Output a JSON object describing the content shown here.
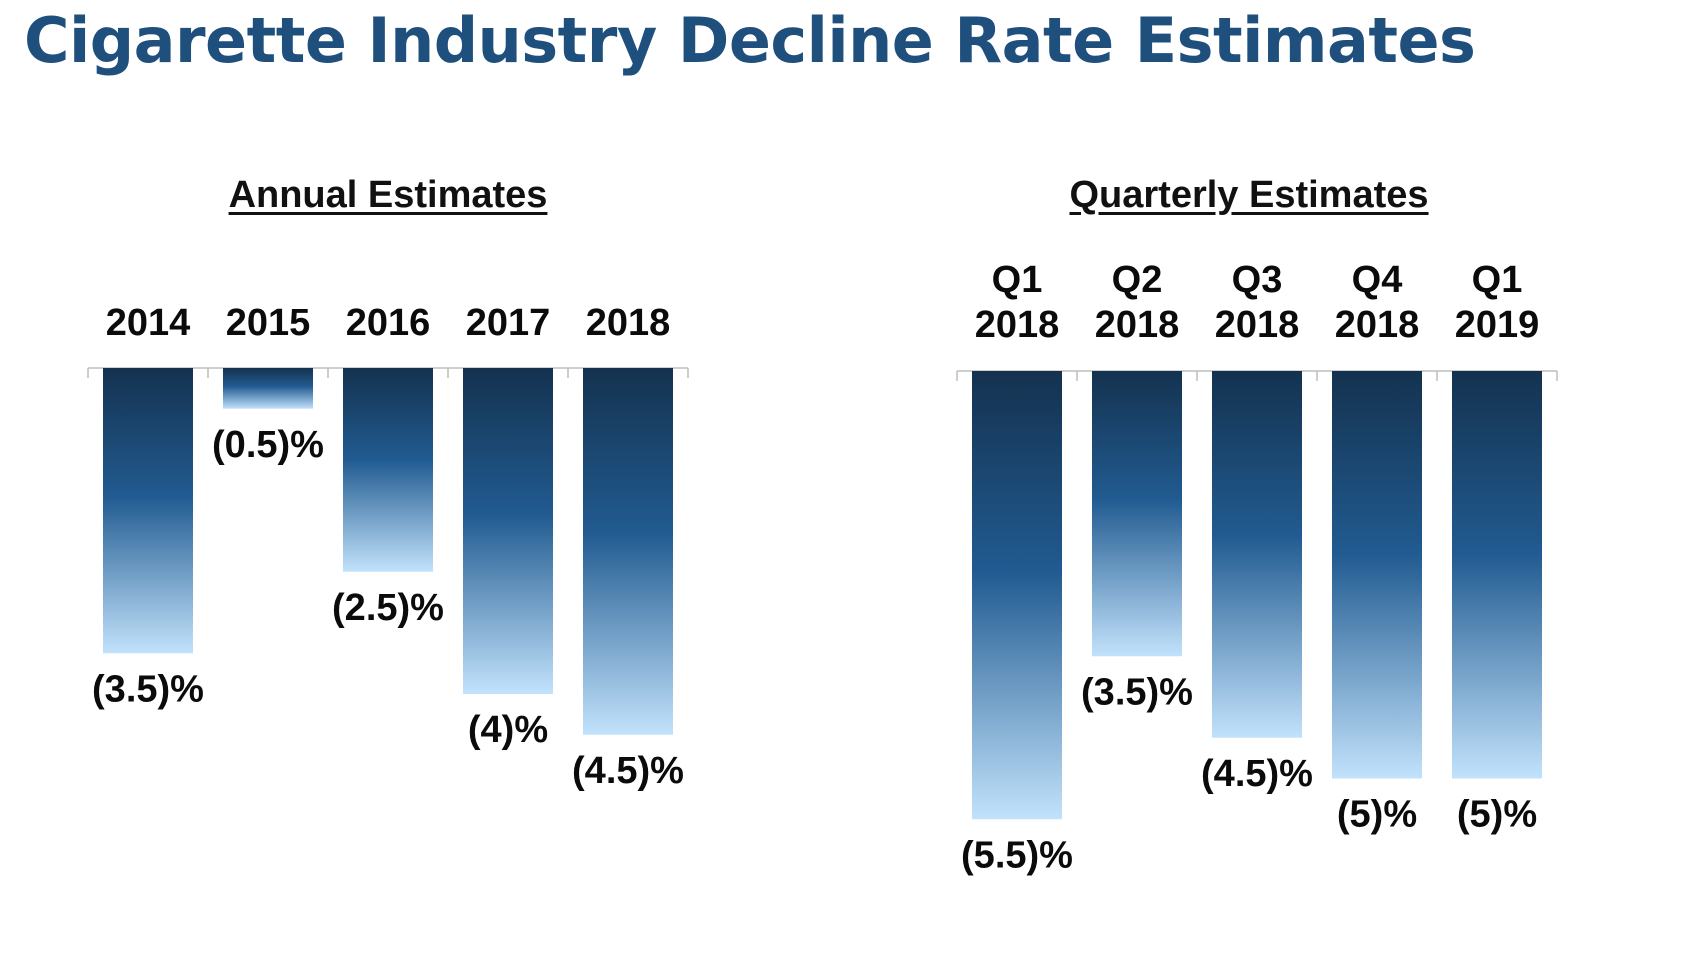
{
  "title": "Cigarette Industry Decline Rate Estimates",
  "colors": {
    "title": "#1f4f7d",
    "bar_top": "#14324f",
    "bar_mid": "#215b91",
    "bar_bottom": "#c2e2fb",
    "axis": "#bdbdbd"
  },
  "chart_data": [
    {
      "type": "bar",
      "title": "Annual Estimates",
      "categories": [
        "2014",
        "2015",
        "2016",
        "2017",
        "2018"
      ],
      "values": [
        -3.5,
        -0.5,
        -2.5,
        -4,
        -4.5
      ],
      "value_labels": [
        "(3.5)%",
        "(0.5)%",
        "(2.5)%",
        "(4)%",
        "(4.5)%"
      ],
      "ylim": [
        -5.5,
        0
      ],
      "grid": false,
      "legend": "none"
    },
    {
      "type": "bar",
      "title": "Quarterly Estimates",
      "categories": [
        [
          "Q1",
          "2018"
        ],
        [
          "Q2",
          "2018"
        ],
        [
          "Q3",
          "2018"
        ],
        [
          "Q4",
          "2018"
        ],
        [
          "Q1",
          "2019"
        ]
      ],
      "values": [
        -5.5,
        -3.5,
        -4.5,
        -5,
        -5
      ],
      "value_labels": [
        "(5.5)%",
        "(3.5)%",
        "(4.5)%",
        "(5)%",
        "(5)%"
      ],
      "ylim": [
        -5.5,
        0
      ],
      "grid": false,
      "legend": "none"
    }
  ]
}
